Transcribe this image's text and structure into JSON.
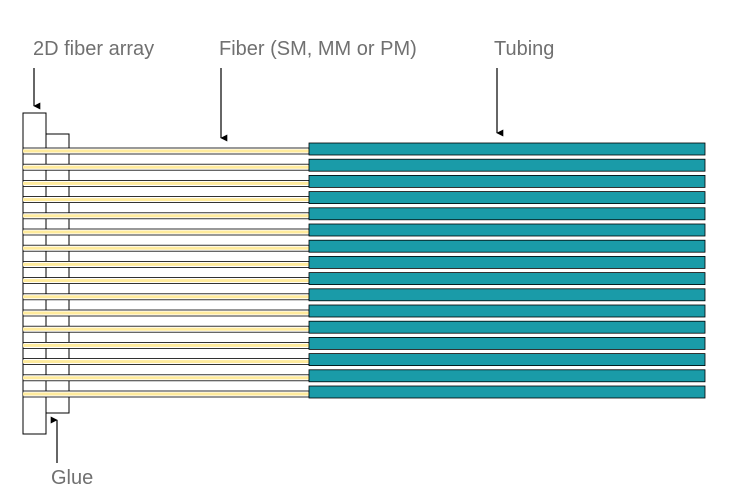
{
  "labels": {
    "fiber_array": "2D fiber array",
    "fiber": "Fiber (SM, MM or PM)",
    "tubing": "Tubing",
    "glue": "Glue"
  },
  "fiber_count": 16,
  "colors": {
    "fiber_core": "#FFEB9C",
    "tubing_fill": "#1A9BA8",
    "outline": "#000000",
    "label_text": "#707070"
  }
}
